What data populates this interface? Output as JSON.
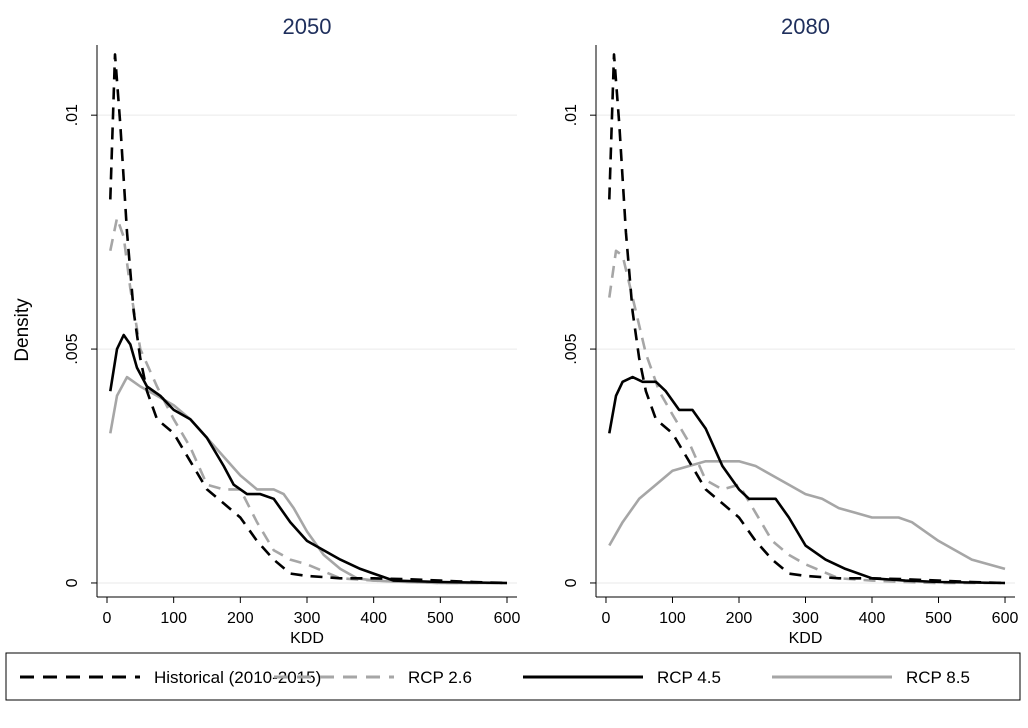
{
  "figure": {
    "ylabel": "Density",
    "legend_position": "bottom"
  },
  "legend": [
    {
      "label": "Historical (2010-2015)",
      "series": "hist"
    },
    {
      "label": "RCP 2.6",
      "series": "rcp26"
    },
    {
      "label": "RCP 4.5",
      "series": "rcp45"
    },
    {
      "label": "RCP 8.5",
      "series": "rcp85"
    }
  ],
  "styles": {
    "hist": {
      "color": "#000000",
      "dash": "12 8"
    },
    "rcp26": {
      "color": "#a6a6a6",
      "dash": "12 8"
    },
    "rcp45": {
      "color": "#000000",
      "dash": ""
    },
    "rcp85": {
      "color": "#a6a6a6",
      "dash": ""
    }
  },
  "chart_data": [
    {
      "type": "line",
      "title": "2050",
      "xlabel": "KDD",
      "xlim": [
        -15,
        615
      ],
      "ylim": [
        -0.0003,
        0.0115
      ],
      "xticks": [
        0,
        100,
        200,
        300,
        400,
        500,
        600
      ],
      "xtick_labels": [
        "0",
        "100",
        "200",
        "300",
        "400",
        "500",
        "600"
      ],
      "yticks": [
        0,
        0.005,
        0.01
      ],
      "ytick_labels": [
        "0",
        ".005",
        ".01"
      ],
      "grid": true,
      "series": [
        {
          "key": "hist",
          "name": "Historical (2010-2015)",
          "x": [
            5,
            12,
            20,
            30,
            40,
            50,
            60,
            75,
            100,
            125,
            150,
            175,
            200,
            225,
            250,
            275,
            300,
            350,
            400,
            450,
            500,
            550,
            600
          ],
          "y": [
            0.0082,
            0.0113,
            0.0098,
            0.0075,
            0.0058,
            0.0048,
            0.0041,
            0.0035,
            0.0032,
            0.0026,
            0.002,
            0.0017,
            0.0014,
            0.0009,
            0.0005,
            0.0002,
            0.00015,
            0.0001,
            0.0001,
            8e-05,
            5e-05,
            2e-05,
            0.0
          ]
        },
        {
          "key": "rcp26",
          "name": "RCP 2.6",
          "x": [
            5,
            15,
            25,
            35,
            50,
            75,
            100,
            125,
            150,
            175,
            200,
            225,
            250,
            275,
            300,
            350,
            400,
            450,
            500,
            550,
            600
          ],
          "y": [
            0.0071,
            0.0078,
            0.0074,
            0.0063,
            0.005,
            0.0042,
            0.0035,
            0.0029,
            0.0021,
            0.002,
            0.002,
            0.0013,
            0.0007,
            0.0005,
            0.0004,
            0.0001,
            5e-05,
            2e-05,
            0.0,
            0.0,
            0.0
          ]
        },
        {
          "key": "rcp45",
          "name": "RCP 4.5",
          "x": [
            5,
            15,
            25,
            35,
            45,
            60,
            80,
            100,
            125,
            150,
            175,
            190,
            210,
            230,
            250,
            275,
            300,
            350,
            380,
            400,
            430,
            500,
            600
          ],
          "y": [
            0.0041,
            0.005,
            0.0053,
            0.0051,
            0.0046,
            0.0042,
            0.004,
            0.0037,
            0.0035,
            0.0031,
            0.0025,
            0.0021,
            0.0019,
            0.0019,
            0.0018,
            0.0013,
            0.0009,
            0.0005,
            0.0003,
            0.0002,
            5e-05,
            2e-05,
            0.0
          ]
        },
        {
          "key": "rcp85",
          "name": "RCP 8.5",
          "x": [
            5,
            15,
            30,
            50,
            75,
            100,
            125,
            150,
            175,
            200,
            225,
            250,
            265,
            280,
            300,
            325,
            350,
            375,
            400,
            450,
            500,
            600
          ],
          "y": [
            0.0032,
            0.004,
            0.0044,
            0.0042,
            0.004,
            0.0038,
            0.0035,
            0.0031,
            0.0027,
            0.0023,
            0.002,
            0.002,
            0.0019,
            0.0016,
            0.0011,
            0.0006,
            0.0003,
            0.0001,
            5e-05,
            2e-05,
            0.0,
            0.0
          ]
        }
      ]
    },
    {
      "type": "line",
      "title": "2080",
      "xlabel": "KDD",
      "xlim": [
        -15,
        615
      ],
      "ylim": [
        -0.0003,
        0.0115
      ],
      "xticks": [
        0,
        100,
        200,
        300,
        400,
        500,
        600
      ],
      "xtick_labels": [
        "0",
        "100",
        "200",
        "300",
        "400",
        "500",
        "600"
      ],
      "yticks": [
        0,
        0.005,
        0.01
      ],
      "ytick_labels": [
        "0",
        ".005",
        ".01"
      ],
      "grid": true,
      "series": [
        {
          "key": "hist",
          "name": "Historical (2010-2015)",
          "x": [
            5,
            12,
            20,
            30,
            40,
            50,
            60,
            75,
            100,
            125,
            150,
            175,
            200,
            225,
            250,
            275,
            300,
            350,
            400,
            450,
            500,
            550,
            600
          ],
          "y": [
            0.0082,
            0.0113,
            0.0098,
            0.0075,
            0.0058,
            0.0048,
            0.0041,
            0.0035,
            0.0032,
            0.0026,
            0.002,
            0.0017,
            0.0014,
            0.0009,
            0.0005,
            0.0002,
            0.00015,
            0.0001,
            0.0001,
            8e-05,
            5e-05,
            2e-05,
            0.0
          ]
        },
        {
          "key": "rcp26",
          "name": "RCP 2.6",
          "x": [
            5,
            15,
            25,
            40,
            60,
            80,
            100,
            125,
            150,
            175,
            200,
            225,
            250,
            275,
            300,
            350,
            400,
            450,
            500,
            600
          ],
          "y": [
            0.0061,
            0.0071,
            0.007,
            0.0061,
            0.0049,
            0.0041,
            0.0036,
            0.003,
            0.0022,
            0.002,
            0.0021,
            0.0015,
            0.0009,
            0.0006,
            0.0004,
            0.0001,
            5e-05,
            2e-05,
            0.0,
            0.0
          ]
        },
        {
          "key": "rcp45",
          "name": "RCP 4.5",
          "x": [
            5,
            15,
            25,
            40,
            55,
            75,
            90,
            110,
            130,
            150,
            175,
            200,
            215,
            235,
            255,
            275,
            300,
            330,
            360,
            400,
            450,
            500,
            600
          ],
          "y": [
            0.0032,
            0.004,
            0.0043,
            0.0044,
            0.0043,
            0.0043,
            0.0041,
            0.0037,
            0.0037,
            0.0033,
            0.0025,
            0.002,
            0.0018,
            0.0018,
            0.0018,
            0.0014,
            0.0008,
            0.0005,
            0.0003,
            0.0001,
            5e-05,
            2e-05,
            0.0
          ]
        },
        {
          "key": "rcp85",
          "name": "RCP 8.5",
          "x": [
            5,
            25,
            50,
            75,
            100,
            125,
            150,
            175,
            200,
            225,
            250,
            275,
            300,
            325,
            350,
            375,
            400,
            425,
            440,
            460,
            500,
            550,
            600
          ],
          "y": [
            0.0008,
            0.0013,
            0.0018,
            0.0021,
            0.0024,
            0.0025,
            0.0026,
            0.0026,
            0.0026,
            0.0025,
            0.0023,
            0.0021,
            0.0019,
            0.0018,
            0.0016,
            0.0015,
            0.0014,
            0.0014,
            0.0014,
            0.0013,
            0.0009,
            0.0005,
            0.0003
          ]
        }
      ]
    }
  ]
}
